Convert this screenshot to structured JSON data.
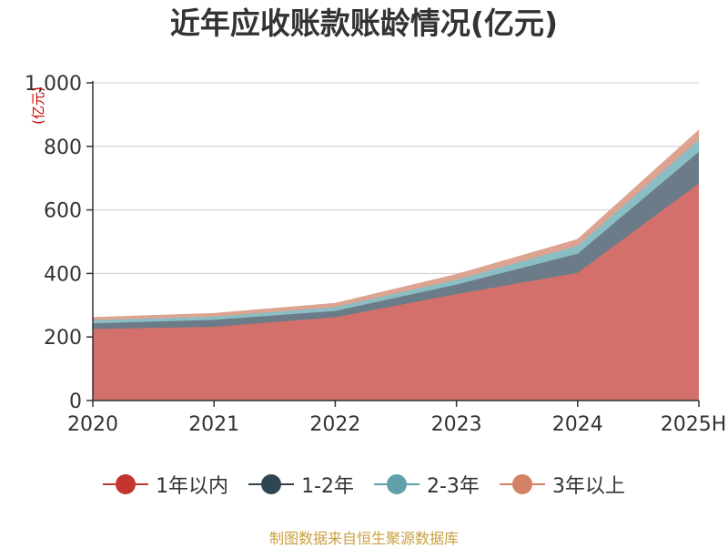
{
  "title": "近年应收账款账龄情况(亿元)",
  "source_note": "制图数据来自恒生聚源数据库",
  "chart_data": {
    "type": "area",
    "stacked": true,
    "title": "近年应收账款账龄情况(亿元)",
    "ylabel": "(亿元)",
    "xlabel": "",
    "categories": [
      "2020",
      "2021",
      "2022",
      "2023",
      "2024",
      "2025H"
    ],
    "ylim": [
      0,
      1000
    ],
    "yticks": [
      0,
      200,
      400,
      600,
      800,
      1000
    ],
    "ytick_labels": [
      "0",
      "200",
      "400",
      "600",
      "800",
      "1,000"
    ],
    "grid": true,
    "legend_position": "bottom",
    "series": [
      {
        "name": "1年以内",
        "color": "#c23531",
        "fill": "#d4706c",
        "values": [
          225,
          232,
          262,
          335,
          402,
          683
        ]
      },
      {
        "name": "1-2年",
        "color": "#2f4554",
        "fill": "#6b7c88",
        "values": [
          18,
          22,
          20,
          30,
          60,
          100
        ]
      },
      {
        "name": "2-3年",
        "color": "#61a0a8",
        "fill": "#8bbec4",
        "values": [
          10,
          10,
          12,
          15,
          25,
          38
        ]
      },
      {
        "name": "3年以上",
        "color": "#d48265",
        "fill": "#dca391",
        "values": [
          8,
          10,
          12,
          17,
          20,
          30
        ]
      }
    ]
  }
}
